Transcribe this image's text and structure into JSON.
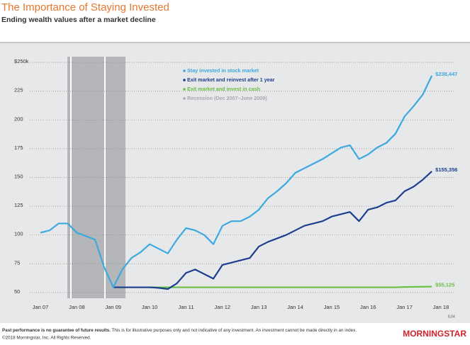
{
  "chart_data": {
    "type": "line",
    "title": "The Importance of Staying Invested",
    "subtitle": "Ending wealth values after a market decline",
    "code": "IL04",
    "categories": [
      "Jan 07",
      null,
      null,
      null,
      "Jan 08",
      null,
      null,
      null,
      "Jan 09",
      null,
      null,
      null,
      "Jan 10",
      null,
      null,
      null,
      "Jan 11",
      null,
      null,
      null,
      "Jan 12",
      null,
      null,
      null,
      "Jan 13",
      null,
      null,
      null,
      "Jan 14",
      null,
      null,
      null,
      "Jan 15",
      null,
      null,
      null,
      "Jan 16",
      null,
      null,
      null,
      "Jan 17",
      null,
      null,
      null,
      "Jan 18"
    ],
    "series": [
      {
        "name": "Stay invested in stock market",
        "color": "#3ca9df",
        "values": [
          102,
          104,
          110,
          110,
          102,
          99,
          96,
          72,
          54.5,
          70,
          80,
          85,
          92,
          88,
          84,
          96,
          106,
          104,
          100,
          92,
          108,
          112,
          112,
          116,
          122,
          132,
          138,
          145,
          154,
          158,
          162,
          166,
          171,
          176,
          178,
          166,
          170,
          176,
          180,
          188,
          203,
          212,
          222,
          238.447,
          null
        ],
        "value_labels": [
          null,
          null,
          null,
          null,
          null,
          null,
          null,
          null,
          null,
          null,
          null,
          null,
          null,
          null,
          null,
          null,
          null,
          null,
          null,
          null,
          null,
          null,
          null,
          null,
          null,
          null,
          null,
          null,
          null,
          null,
          null,
          null,
          null,
          null,
          null,
          null,
          null,
          null,
          null,
          null,
          null,
          null,
          null,
          "$238,447",
          null
        ]
      },
      {
        "name": "Exit market and reinvest after 1 year",
        "color": "#1d3f8f",
        "values": [
          null,
          null,
          null,
          null,
          null,
          null,
          null,
          null,
          54.5,
          54.5,
          54.5,
          54.5,
          54.5,
          54,
          53,
          58,
          67,
          70,
          66,
          62,
          74,
          76,
          78,
          80,
          90,
          94,
          97,
          100,
          104,
          108,
          110,
          112,
          116,
          118,
          120,
          112,
          122,
          124,
          128,
          130,
          138,
          142,
          148,
          155.356,
          null
        ],
        "value_labels": [
          null,
          null,
          null,
          null,
          null,
          null,
          null,
          null,
          null,
          null,
          null,
          null,
          null,
          null,
          null,
          null,
          null,
          null,
          null,
          null,
          null,
          null,
          null,
          null,
          null,
          null,
          null,
          null,
          null,
          null,
          null,
          null,
          null,
          null,
          null,
          null,
          null,
          null,
          null,
          null,
          null,
          null,
          null,
          "$155,356",
          null
        ]
      },
      {
        "name": "Exit market and invest in cash",
        "color": "#6abf45",
        "values": [
          null,
          null,
          null,
          null,
          null,
          null,
          null,
          null,
          54.5,
          54.5,
          54.5,
          54.5,
          54.5,
          54.5,
          54.5,
          54.5,
          54.5,
          54.5,
          54.5,
          54.5,
          54.5,
          54.5,
          54.5,
          54.5,
          54.5,
          54.5,
          54.5,
          54.5,
          54.5,
          54.5,
          54.5,
          54.5,
          54.5,
          54.5,
          54.5,
          54.5,
          54.5,
          54.5,
          54.5,
          54.5,
          54.8,
          54.9,
          55,
          55.125,
          null
        ],
        "value_labels": [
          null,
          null,
          null,
          null,
          null,
          null,
          null,
          null,
          null,
          null,
          null,
          null,
          null,
          null,
          null,
          null,
          null,
          null,
          null,
          null,
          null,
          null,
          null,
          null,
          null,
          null,
          null,
          null,
          null,
          null,
          null,
          null,
          null,
          null,
          null,
          null,
          null,
          null,
          null,
          null,
          null,
          null,
          null,
          "$55,125",
          null
        ]
      }
    ],
    "recession": {
      "name": "Recession (Dec 2007–June 2009)",
      "color": "#a7a9ac"
    },
    "ylim": [
      45,
      255
    ],
    "yticks": [
      50,
      75,
      100,
      125,
      150,
      175,
      200,
      225,
      {
        "value": 250,
        "label": "$250k"
      }
    ],
    "grid": true
  },
  "footer": {
    "disclaimer_bold": "Past performance is no guarantee of future results.",
    "disclaimer": " This is for illustrative purposes only and not indicative of any investment. An investment cannot be made directly in an index.",
    "copyright": "©2018 Morningstar, Inc. All Rights Reserved.",
    "logo": "MORNINGSTAR"
  }
}
